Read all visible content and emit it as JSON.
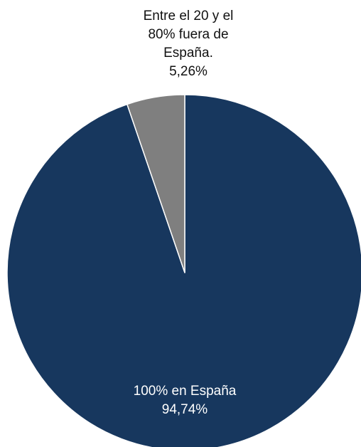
{
  "chart_data": {
    "type": "pie",
    "title": "",
    "start_angle_deg": 0,
    "direction": "clockwise",
    "slices": [
      {
        "label": "100% en España",
        "value": 94.74,
        "value_label": "94,74%",
        "color": "#17375e"
      },
      {
        "label_lines": [
          "Entre el 20 y el",
          "80% fuera de",
          "España."
        ],
        "value": 5.26,
        "value_label": "5,26%",
        "color": "#7f7f7f"
      }
    ],
    "slice_border_color": "#ffffff",
    "legend": "none"
  }
}
